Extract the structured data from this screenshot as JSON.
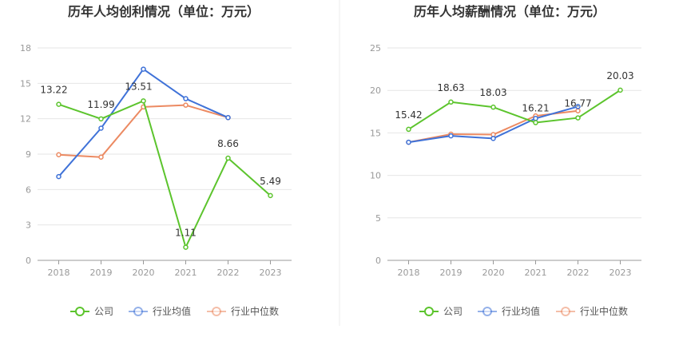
{
  "chart_data": [
    {
      "type": "line",
      "title": "历年人均创利情况（单位：万元）",
      "categories": [
        "2018",
        "2019",
        "2020",
        "2021",
        "2022",
        "2023"
      ],
      "ylim": [
        0,
        18
      ],
      "yticks": [
        "0",
        "3",
        "6",
        "9",
        "12",
        "15",
        "18"
      ],
      "grid": true,
      "legend_position": "bottom",
      "series": [
        {
          "name": "公司",
          "color": "#5cc42d",
          "values": [
            13.22,
            11.99,
            13.51,
            1.11,
            8.66,
            5.49
          ],
          "labels": [
            "13.22",
            "11.99",
            "13.51",
            "1.11",
            "8.66",
            "5.49"
          ]
        },
        {
          "name": "行业均值",
          "color": "#3f72d8",
          "values": [
            7.1,
            11.2,
            16.2,
            13.7,
            12.1,
            null
          ]
        },
        {
          "name": "行业中位数",
          "color": "#ec8a62",
          "values": [
            8.95,
            8.75,
            13.0,
            13.15,
            12.1,
            null
          ]
        }
      ]
    },
    {
      "type": "line",
      "title": "历年人均薪酬情况（单位：万元）",
      "categories": [
        "2018",
        "2019",
        "2020",
        "2021",
        "2022",
        "2023"
      ],
      "ylim": [
        0,
        25
      ],
      "yticks": [
        "0",
        "5",
        "10",
        "15",
        "20",
        "25"
      ],
      "grid": true,
      "legend_position": "bottom",
      "series": [
        {
          "name": "公司",
          "color": "#5cc42d",
          "values": [
            15.42,
            18.63,
            18.03,
            16.21,
            16.77,
            20.03
          ],
          "labels": [
            "15.42",
            "18.63",
            "18.03",
            "16.21",
            "16.77",
            "20.03"
          ]
        },
        {
          "name": "行业均值",
          "color": "#3f72d8",
          "values": [
            13.9,
            14.65,
            14.35,
            16.7,
            18.1,
            null
          ]
        },
        {
          "name": "行业中位数",
          "color": "#ec8a62",
          "values": [
            13.9,
            14.85,
            14.8,
            17.0,
            17.6,
            null
          ]
        }
      ]
    }
  ]
}
